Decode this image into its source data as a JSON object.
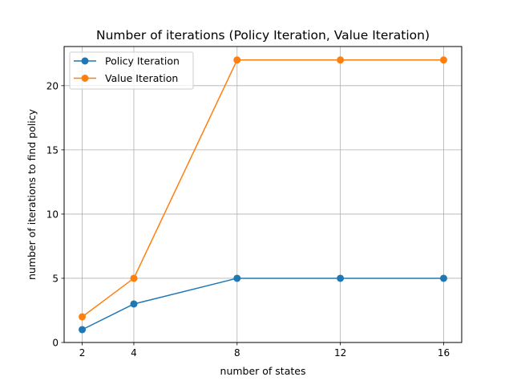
{
  "chart_data": {
    "type": "line",
    "title": "Number of iterations (Policy Iteration, Value Iteration)",
    "xlabel": "number of states",
    "ylabel": "number of iterations to find policy",
    "x": [
      2,
      4,
      8,
      12,
      16
    ],
    "x_ticks": [
      2,
      4,
      8,
      12,
      16
    ],
    "y_ticks": [
      0,
      5,
      10,
      15,
      20
    ],
    "xlim": [
      1.3,
      16.7
    ],
    "ylim": [
      0,
      23.05
    ],
    "grid": true,
    "legend_position": "upper-left",
    "series": [
      {
        "name": "Policy Iteration",
        "values": [
          1,
          3,
          5,
          5,
          5
        ],
        "color": "#1f77b4"
      },
      {
        "name": "Value Iteration",
        "values": [
          2,
          5,
          22,
          22,
          22
        ],
        "color": "#ff7f0e"
      }
    ]
  }
}
